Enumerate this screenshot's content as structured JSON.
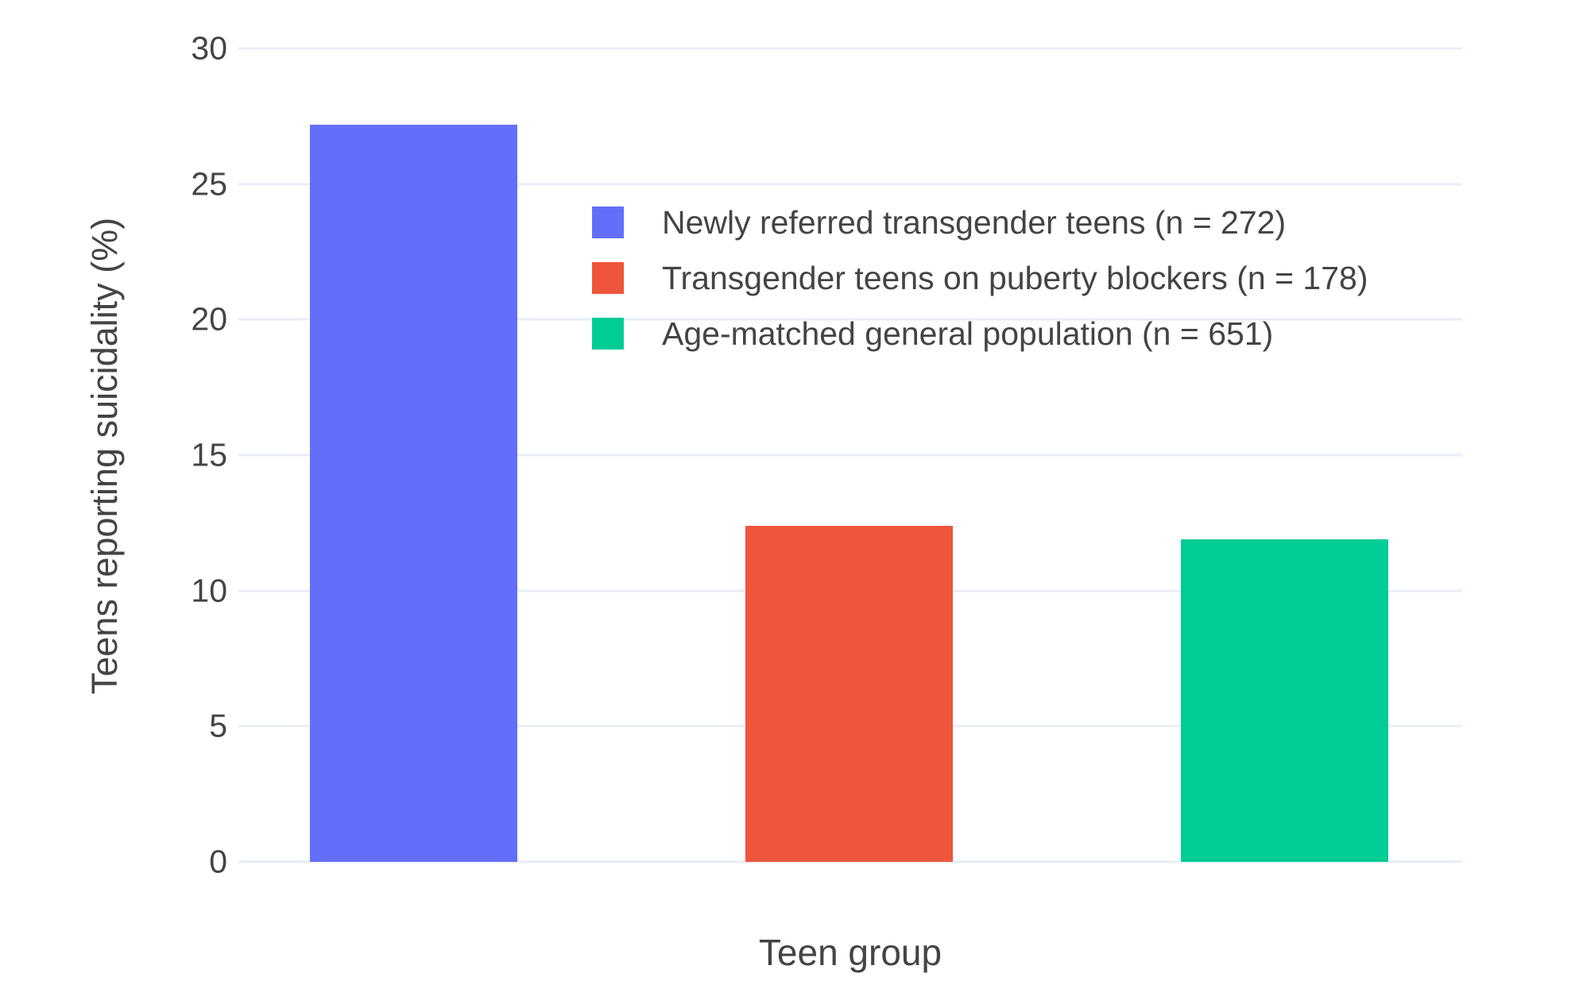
{
  "chart_data": {
    "type": "bar",
    "title": "",
    "xlabel": "Teen group",
    "ylabel": "Teens reporting suicidality (%)",
    "ylim": [
      0,
      30
    ],
    "yticks": [
      0,
      5,
      10,
      15,
      20,
      25,
      30
    ],
    "grid": true,
    "legend_position": "inside-top, left of center",
    "categories": [
      "Newly referred transgender teens",
      "Transgender teens on puberty blockers",
      "Age-matched general population"
    ],
    "series": [
      {
        "name": "Newly referred transgender teens (n = 272)",
        "value": 27.2,
        "color": "#636EFA"
      },
      {
        "name": "Transgender teens on puberty blockers (n = 178)",
        "value": 12.4,
        "color": "#EF553B"
      },
      {
        "name": "Age-matched general population (n = 651)",
        "value": 11.9,
        "color": "#00CC96"
      }
    ]
  },
  "colors": {
    "background": "#FFFFFF",
    "gridline": "#E8EDF7",
    "text": "#444444"
  }
}
